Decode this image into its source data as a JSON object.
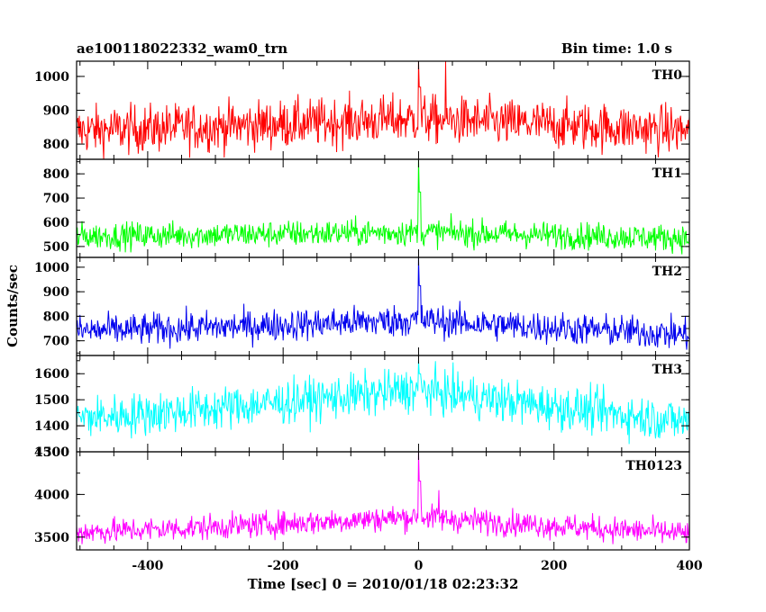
{
  "header": {
    "title": "ae100118022332_wam0_trn",
    "bin_time": "Bin time: 1.0 s"
  },
  "axes": {
    "xlabel": "Time [sec] 0 = 2010/01/18 02:23:32",
    "ylabel": "Counts/sec"
  },
  "chart_data": {
    "type": "line",
    "x_range": [
      -505,
      400
    ],
    "x_ticks": [
      -400,
      -200,
      0,
      200,
      400
    ],
    "n_points": 906,
    "panels": [
      {
        "name": "TH0",
        "color": "#ff0000",
        "ylim": [
          755,
          1045
        ],
        "yticks": [
          800,
          900,
          1000
        ],
        "baseline": 840,
        "mid": 875,
        "end": 840,
        "noise": 36,
        "peak": 1045,
        "extra_peaks": [
          [
            40,
            1045
          ]
        ]
      },
      {
        "name": "TH1",
        "color": "#00ff00",
        "ylim": [
          455,
          860
        ],
        "yticks": [
          500,
          600,
          700,
          800
        ],
        "baseline": 543,
        "mid": 560,
        "end": 535,
        "noise": 28,
        "peak": 860,
        "extra_peaks": []
      },
      {
        "name": "TH2",
        "color": "#0000ee",
        "ylim": [
          640,
          1040
        ],
        "yticks": [
          700,
          800,
          900,
          1000
        ],
        "baseline": 740,
        "mid": 785,
        "end": 725,
        "noise": 33,
        "peak": 1040,
        "extra_peaks": []
      },
      {
        "name": "TH3",
        "color": "#00ffff",
        "ylim": [
          1300,
          1670
        ],
        "yticks": [
          1300,
          1400,
          1500,
          1600
        ],
        "baseline": 1430,
        "mid": 1540,
        "end": 1415,
        "noise": 42,
        "peak": 1650,
        "extra_peaks": []
      },
      {
        "name": "TH0123",
        "color": "#ff00ff",
        "ylim": [
          3350,
          4500
        ],
        "yticks": [
          3500,
          4000,
          4500
        ],
        "baseline": 3560,
        "mid": 3740,
        "end": 3540,
        "noise": 75,
        "peak": 4500,
        "extra_peaks": [
          [
            30,
            4050
          ]
        ]
      }
    ]
  }
}
